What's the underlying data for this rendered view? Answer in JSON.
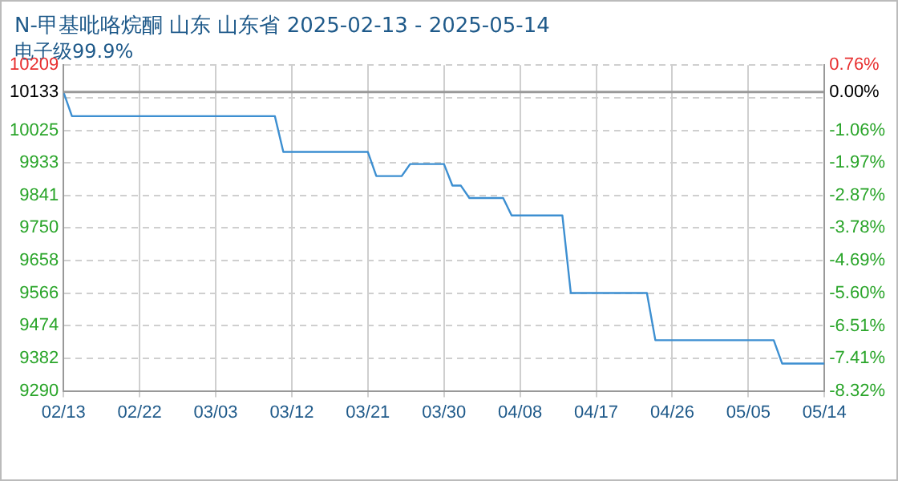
{
  "chart_data": {
    "type": "line",
    "title": "N-甲基吡咯烷酮 山东 山东省 2025-02-13 - 2025-05-14",
    "subtitle": "电子级99.9%",
    "x": [
      "2025-02-13",
      "2025-02-14",
      "2025-03-10",
      "2025-03-11",
      "2025-03-21",
      "2025-03-22",
      "2025-03-25",
      "2025-03-26",
      "2025-03-30",
      "2025-03-31",
      "2025-04-01",
      "2025-04-02",
      "2025-04-06",
      "2025-04-07",
      "2025-04-13",
      "2025-04-14",
      "2025-04-23",
      "2025-04-24",
      "2025-05-08",
      "2025-05-09",
      "2025-05-14"
    ],
    "series": [
      {
        "color": "#3d8fd1",
        "values": [
          10133,
          10065,
          10065,
          9964,
          9964,
          9896,
          9896,
          9930,
          9930,
          9869,
          9869,
          9834,
          9834,
          9785,
          9785,
          9566,
          9566,
          9433,
          9433,
          9367,
          9367
        ]
      }
    ],
    "xlim": [
      "2025-02-13",
      "2025-05-14"
    ],
    "xticks": [
      {
        "value": "2025-02-13",
        "label": "02/13"
      },
      {
        "value": "2025-02-22",
        "label": "02/22"
      },
      {
        "value": "2025-03-03",
        "label": "03/03"
      },
      {
        "value": "2025-03-12",
        "label": "03/12"
      },
      {
        "value": "2025-03-21",
        "label": "03/21"
      },
      {
        "value": "2025-03-30",
        "label": "03/30"
      },
      {
        "value": "2025-04-08",
        "label": "04/08"
      },
      {
        "value": "2025-04-17",
        "label": "04/17"
      },
      {
        "value": "2025-04-26",
        "label": "04/26"
      },
      {
        "value": "2025-05-05",
        "label": "05/05"
      },
      {
        "value": "2025-05-14",
        "label": "05/14"
      }
    ],
    "ylim": [
      9290,
      10209
    ],
    "yticks": [
      9290,
      9382,
      9474,
      9566,
      9658,
      9750,
      9841,
      9933,
      10025,
      {
        "value": 10117,
        "label": null
      },
      10133,
      10209
    ],
    "y2lim": [
      -8.32,
      0.76
    ],
    "y2ticks": [
      {
        "value": -8.32,
        "label": "-8.32%"
      },
      {
        "value": -7.41,
        "label": "-7.41%"
      },
      {
        "value": -6.51,
        "label": "-6.51%"
      },
      {
        "value": -5.6,
        "label": "-5.60%"
      },
      {
        "value": -4.69,
        "label": "-4.69%"
      },
      {
        "value": -3.78,
        "label": "-3.78%"
      },
      {
        "value": -2.87,
        "label": "-2.87%"
      },
      {
        "value": -1.97,
        "label": "-1.97%"
      },
      {
        "value": -1.06,
        "label": "-1.06%"
      },
      {
        "value": 0,
        "label": "0.00%"
      },
      {
        "value": 0.76,
        "label": "0.76%"
      }
    ],
    "ref_lines": [
      {
        "axis": "y",
        "value": 10133,
        "color": "#999999"
      }
    ],
    "grid": true,
    "legend": false,
    "marker": "none",
    "line_style": "solid"
  }
}
